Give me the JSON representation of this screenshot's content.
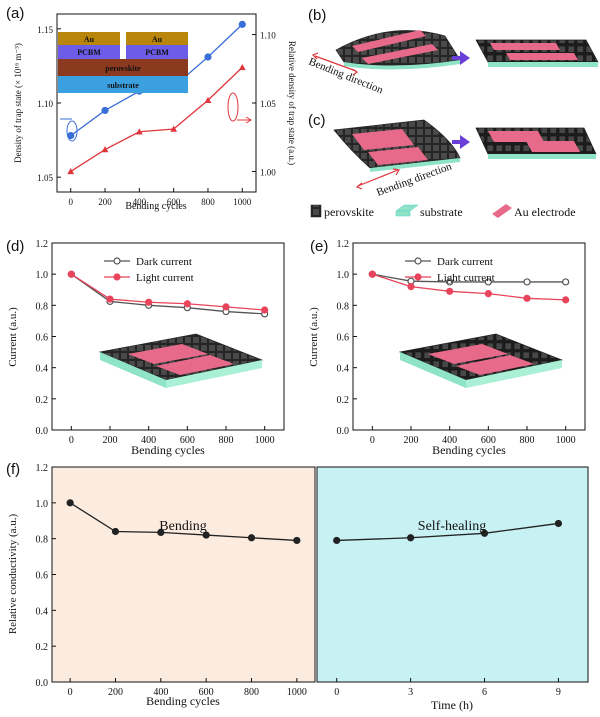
{
  "colors": {
    "blue": "#3a6fd8",
    "red": "#e0353a",
    "pink_line": "#e8455c",
    "bending_bg": "#fcece0",
    "healing_bg": "#c8f1f4",
    "au": "#b8860b",
    "pcbm": "#6c5ce7",
    "perovskite_layer": "#8b3a1f",
    "substrate_layer": "#3aa0e0",
    "film": "#3b3b3b",
    "substrate_film": "#8fe3c6",
    "electrode": "#e86a8a",
    "arrow": "#6a3fd8"
  },
  "panel_labels": {
    "a": "(a)",
    "b": "(b)",
    "c": "(c)",
    "d": "(d)",
    "e": "(e)",
    "f": "(f)"
  },
  "stack": {
    "au1": "Au",
    "au2": "Au",
    "pcbm1": "PCBM",
    "pcbm2": "PCBM",
    "perovskite": "perovskite",
    "substrate": "substrate"
  },
  "schematic": {
    "bending_direction_b": "Bending direction",
    "bending_direction_c": "Bending direction"
  },
  "legend_bottom": {
    "perovskite": "perovskite",
    "substrate": "substrate",
    "electrode": "Au electrode"
  },
  "chart_data": [
    {
      "id": "a",
      "type": "line",
      "xlabel": "Bending cycles",
      "ylabel": "Density of trap state (× 10¹⁶ m⁻³)",
      "y2label": "Relative density of trap state (a.u.)",
      "x": [
        0,
        200,
        400,
        600,
        800,
        1000
      ],
      "xlim": [
        -80,
        1080
      ],
      "ylim": [
        1.04,
        1.16
      ],
      "y2lim": [
        0.985,
        1.115
      ],
      "yticks": [
        "1.05",
        "1.10",
        "1.15"
      ],
      "y2ticks": [
        "1.00",
        "1.05",
        "1.10"
      ],
      "xticks": [
        "0",
        "200",
        "400",
        "600",
        "800",
        "1000"
      ],
      "series": [
        {
          "axis": "left",
          "color": "#3a6fd8",
          "values": [
            1.078,
            1.095,
            1.108,
            1.111,
            1.131,
            1.153
          ]
        },
        {
          "axis": "right",
          "color": "#e0353a",
          "values": [
            1.0,
            1.016,
            1.029,
            1.031,
            1.052,
            1.076
          ]
        }
      ]
    },
    {
      "id": "d",
      "type": "line",
      "xlabel": "Bending cycles",
      "ylabel": "Current (a.u.)",
      "x": [
        0,
        200,
        400,
        600,
        800,
        1000
      ],
      "xlim": [
        -100,
        1100
      ],
      "ylim": [
        0,
        1.2
      ],
      "yticks": [
        "0.0",
        "0.2",
        "0.4",
        "0.6",
        "0.8",
        "1.0",
        "1.2"
      ],
      "xticks": [
        "0",
        "200",
        "400",
        "600",
        "800",
        "1000"
      ],
      "series": [
        {
          "name": "Dark current",
          "color": "#555555",
          "values": [
            1.0,
            0.825,
            0.8,
            0.785,
            0.76,
            0.745
          ]
        },
        {
          "name": "Light current",
          "color": "#e8455c",
          "values": [
            1.0,
            0.84,
            0.82,
            0.81,
            0.79,
            0.77
          ]
        }
      ]
    },
    {
      "id": "e",
      "type": "line",
      "xlabel": "Bending cycles",
      "ylabel": "Current (a.u.)",
      "x": [
        0,
        200,
        400,
        600,
        800,
        1000
      ],
      "xlim": [
        -100,
        1100
      ],
      "ylim": [
        0,
        1.2
      ],
      "yticks": [
        "0.0",
        "0.2",
        "0.4",
        "0.6",
        "0.8",
        "1.0",
        "1.2"
      ],
      "xticks": [
        "0",
        "200",
        "400",
        "600",
        "800",
        "1000"
      ],
      "series": [
        {
          "name": "Dark current",
          "color": "#555555",
          "values": [
            1.0,
            0.955,
            0.95,
            0.95,
            0.95,
            0.95
          ]
        },
        {
          "name": "Light current",
          "color": "#e8455c",
          "values": [
            1.0,
            0.92,
            0.89,
            0.875,
            0.845,
            0.835
          ]
        }
      ]
    },
    {
      "id": "f",
      "type": "line",
      "ylabel": "Relative conductivity (a.u.)",
      "ylim": [
        0,
        1.2
      ],
      "yticks": [
        "0.0",
        "0.2",
        "0.4",
        "0.6",
        "0.8",
        "1.0",
        "1.2"
      ],
      "left": {
        "title": "Bending",
        "xlabel": "Bending cycles",
        "x": [
          0,
          200,
          400,
          600,
          800,
          1000
        ],
        "xlim": [
          -80,
          1080
        ],
        "xticks": [
          "0",
          "200",
          "400",
          "600",
          "800",
          "1000"
        ],
        "values": [
          1.0,
          0.84,
          0.835,
          0.82,
          0.805,
          0.79
        ]
      },
      "right": {
        "title": "Self-healing",
        "xlabel": "Time (h)",
        "x": [
          0,
          3,
          6,
          9
        ],
        "xlim": [
          -0.8,
          10.2
        ],
        "xticks": [
          "0",
          "3",
          "6",
          "9"
        ],
        "values": [
          0.79,
          0.805,
          0.83,
          0.885
        ]
      }
    }
  ]
}
